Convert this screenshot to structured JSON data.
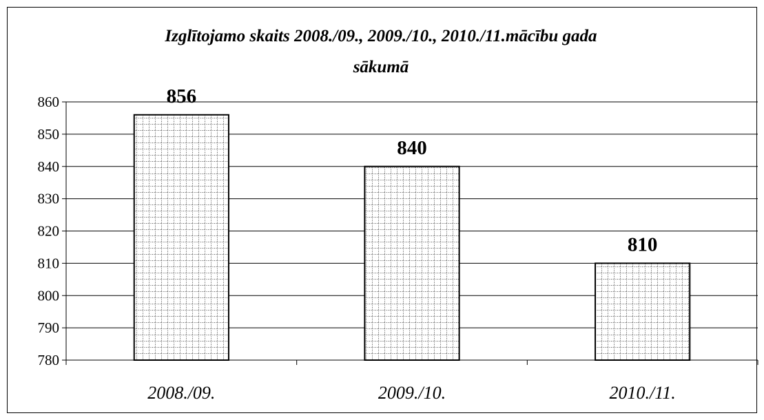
{
  "chart_data": {
    "type": "bar",
    "title_lines": [
      "Izglītojamo skaits 2008./09., 2009./10., 2010./11.mācību gada",
      "sākumā"
    ],
    "categories": [
      "2008./09.",
      "2009./10.",
      "2010./11."
    ],
    "values": [
      856,
      840,
      810
    ],
    "value_labels": [
      "856",
      "840",
      "810"
    ],
    "ylim": [
      780,
      860
    ],
    "yticks": [
      780,
      790,
      800,
      810,
      820,
      830,
      840,
      850,
      860
    ],
    "grid": true,
    "legend": "none",
    "bar_fill": "#ffffff",
    "bar_pattern_color": "#555555",
    "line_color": "#000000"
  }
}
